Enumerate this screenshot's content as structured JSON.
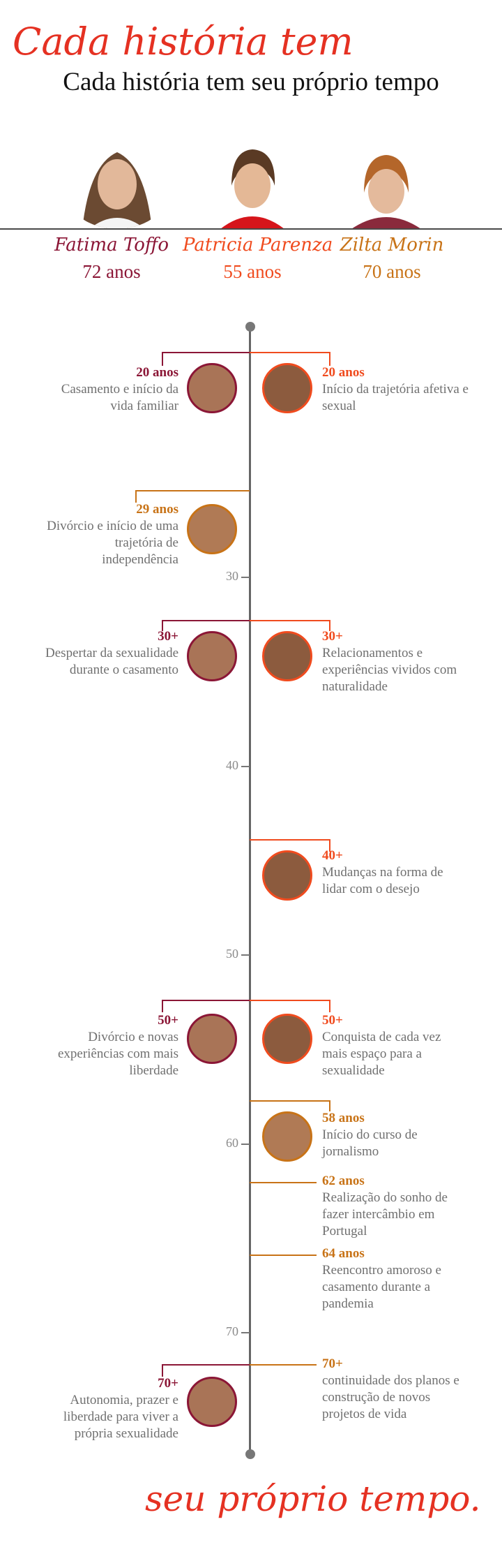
{
  "header": {
    "script_text": "Cada história tem",
    "title": "Cada história tem seu próprio tempo"
  },
  "people": [
    {
      "name": "Fatima Toffo",
      "age": "72 anos",
      "color": "#8b1636"
    },
    {
      "name": "Patricia Parenza",
      "age": "55 anos",
      "color": "#f04b1e"
    },
    {
      "name": "Zilta Morin",
      "age": "70 anos",
      "color": "#c87317"
    }
  ],
  "axis_ticks": [
    "30",
    "40",
    "50",
    "60",
    "70"
  ],
  "events": {
    "e1": {
      "age": "20 anos",
      "text": "Casamento e início da vida familiar"
    },
    "e2": {
      "age": "20 anos",
      "text": "Início da trajetória afetiva e sexual"
    },
    "e3": {
      "age": "29 anos",
      "text": "Divórcio e início de uma trajetória de independência"
    },
    "e4": {
      "age": "30+",
      "text": "Despertar da sexualidade durante o casamento"
    },
    "e5": {
      "age": "30+",
      "text": "Relacionamentos e experiências vividos com naturalidade"
    },
    "e6": {
      "age": "40+",
      "text": "Mudanças na forma de lidar com o desejo"
    },
    "e7": {
      "age": "50+",
      "text": "Divórcio e  novas experiências com mais liberdade"
    },
    "e8": {
      "age": "50+",
      "text": "Conquista de cada vez mais espaço para a sexualidade"
    },
    "e9": {
      "age": "58 anos",
      "text": "Início do curso de jornalismo"
    },
    "e10": {
      "age": "62 anos",
      "text": "Realização do sonho de fazer intercâmbio em Portugal"
    },
    "e11": {
      "age": "64 anos",
      "text": "Reencontro amoroso e casamento durante a pandemia"
    },
    "e12": {
      "age": "70+",
      "text": "Autonomia, prazer e liberdade para viver a própria sexualidade"
    },
    "e13": {
      "age": "70+",
      "text": "continuidade dos planos e construção de novos projetos de vida"
    }
  },
  "footer": {
    "script_text": "seu próprio tempo."
  }
}
